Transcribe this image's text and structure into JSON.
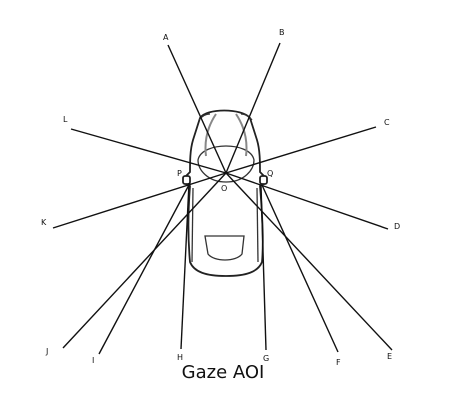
{
  "caption": "Gaze AOI",
  "origin_label": "O",
  "side_labels": {
    "left": "P",
    "right": "Q"
  },
  "rays": [
    {
      "id": "A",
      "label": "A"
    },
    {
      "id": "B",
      "label": "B"
    },
    {
      "id": "C",
      "label": "C"
    },
    {
      "id": "D",
      "label": "D"
    },
    {
      "id": "E",
      "label": "E"
    },
    {
      "id": "F",
      "label": "F"
    },
    {
      "id": "G",
      "label": "G"
    },
    {
      "id": "H",
      "label": "H"
    },
    {
      "id": "I",
      "label": "I"
    },
    {
      "id": "J",
      "label": "J"
    },
    {
      "id": "K",
      "label": "K"
    },
    {
      "id": "L",
      "label": "L"
    }
  ]
}
